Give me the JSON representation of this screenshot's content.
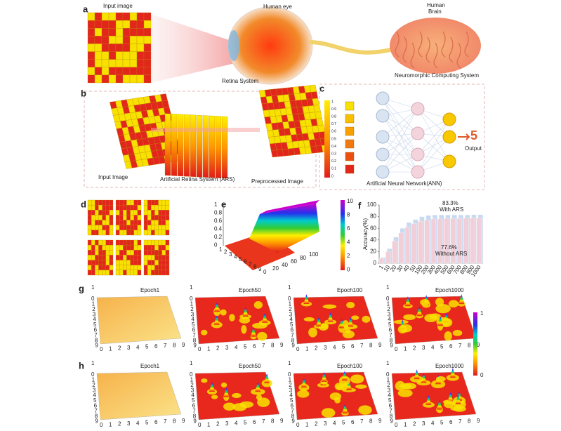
{
  "panel_labels": [
    "a",
    "b",
    "c",
    "d",
    "e",
    "f",
    "g",
    "h"
  ],
  "panel_a": {
    "input_label": "Input image",
    "eye_label": "Human eye",
    "retina_label": "Retina System",
    "brain_label": [
      "Human",
      "Brain"
    ],
    "system_label": "Neuromorphic Computing System"
  },
  "panel_b": {
    "labels": [
      "Input Image",
      "Artificial Retina System (ARS)",
      "Preprocessed Image"
    ]
  },
  "panel_c": {
    "scale_ticks": [
      "1",
      "0.9",
      "0.8",
      "0.7",
      "0.6",
      "0.5",
      "0.4",
      "0.3",
      "0.2",
      "0.1",
      "0"
    ],
    "output_digit": "5",
    "output_label": "Output",
    "network_label": "Artificial Neural Network(ANN)"
  },
  "panel_e": {
    "z_ticks": [
      "1",
      "0.8",
      "0.6",
      "0.4",
      "0.2",
      "0"
    ],
    "x_ticks": [
      "1",
      "2",
      "3",
      "4",
      "5",
      "6",
      "7",
      "8",
      "9"
    ],
    "y_ticks": [
      "0",
      "20",
      "40",
      "60",
      "80",
      "100"
    ],
    "colorbar_ticks": [
      "10",
      "8",
      "6",
      "4",
      "2",
      "0"
    ]
  },
  "chart_data": {
    "type": "bar",
    "ylabel": "Accuracy(%)",
    "categories": [
      "1",
      "10",
      "20",
      "30",
      "40",
      "50",
      "100",
      "200",
      "300",
      "400",
      "500",
      "600",
      "700",
      "800",
      "900",
      "1000"
    ],
    "series": [
      {
        "name": "With ARS",
        "color": "#c9daf0",
        "values": [
          10,
          25,
          45,
          60,
          70,
          75,
          80,
          82,
          83,
          83,
          83,
          83,
          83,
          83,
          83.3,
          83.3
        ]
      },
      {
        "name": "Without ARS",
        "color": "#f2cfd8",
        "values": [
          8,
          20,
          38,
          52,
          62,
          68,
          72,
          74,
          76,
          76,
          77,
          77,
          77,
          77.5,
          77.6,
          77.6
        ]
      }
    ],
    "annotations": [
      "83.3%",
      "77.6%"
    ],
    "ylim": [
      0,
      100
    ],
    "yticks": [
      0,
      20,
      40,
      60,
      80,
      100
    ]
  },
  "panel_g": {
    "titles": [
      "Epoch1",
      "Epoch50",
      "Epoch100",
      "Epoch1000"
    ]
  },
  "panel_h": {
    "titles": [
      "Epoch1",
      "Epoch50",
      "Epoch100",
      "Epoch1000"
    ]
  },
  "surface_axes": {
    "ticks": [
      "0",
      "1",
      "2",
      "3",
      "4",
      "5",
      "6",
      "7",
      "8",
      "9"
    ],
    "z_tick": "1",
    "colorbar_ticks": [
      "1",
      "0"
    ]
  }
}
